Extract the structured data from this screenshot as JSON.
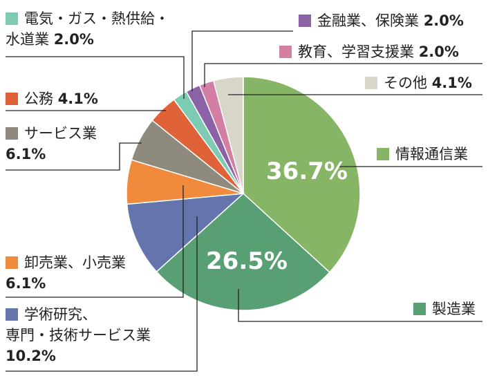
{
  "chart_data": {
    "type": "pie",
    "start": "top",
    "direction": "clockwise",
    "slices": [
      {
        "label": "情報通信業",
        "value": 36.7,
        "display": "36.7%",
        "color": "#86b665"
      },
      {
        "label": "製造業",
        "value": 26.5,
        "display": "26.5%",
        "color": "#58a074"
      },
      {
        "label": "学術研究、専門・技術サービス業",
        "value": 10.2,
        "display": "10.2%",
        "color": "#6574ad"
      },
      {
        "label": "卸売業、小売業",
        "value": 6.1,
        "display": "6.1%",
        "color": "#f08a3c"
      },
      {
        "label": "サービス業",
        "value": 6.1,
        "display": "6.1%",
        "color": "#8f8a7e"
      },
      {
        "label": "公務",
        "value": 4.1,
        "display": "4.1%",
        "color": "#e06238"
      },
      {
        "label": "電気・ガス・熱供給・水道業",
        "value": 2.0,
        "display": "2.0%",
        "color": "#7ccbb2"
      },
      {
        "label": "金融業、保険業",
        "value": 2.0,
        "display": "2.0%",
        "color": "#8c62a6"
      },
      {
        "label": "教育、学習支援業",
        "value": 2.0,
        "display": "2.0%",
        "color": "#d37fa3"
      },
      {
        "label": "その他",
        "value": 4.1,
        "display": "4.1%",
        "color": "#d8d5c9"
      }
    ]
  },
  "labels": {
    "denki_line1": "電気・ガス・熱供給・",
    "denki_line2": "水道業",
    "denki_pct": "2.0%",
    "koumu": "公務",
    "koumu_pct": "4.1%",
    "service": "サービス業",
    "service_pct": "6.1%",
    "oroshi": "卸売業、小売業",
    "oroshi_pct": "6.1%",
    "gakujutsu_line1": "学術研究、",
    "gakujutsu_line2": "専門・技術サービス業",
    "gakujutsu_pct": "10.2%",
    "kinyu": "金融業、保険業",
    "kinyu_pct": "2.0%",
    "kyoiku": "教育、学習支援業",
    "kyoiku_pct": "2.0%",
    "sonota": "その他",
    "sonota_pct": "4.1%",
    "joho": "情報通信業",
    "seizo": "製造業",
    "inside_joho": "36.7%",
    "inside_seizo": "26.5%"
  }
}
